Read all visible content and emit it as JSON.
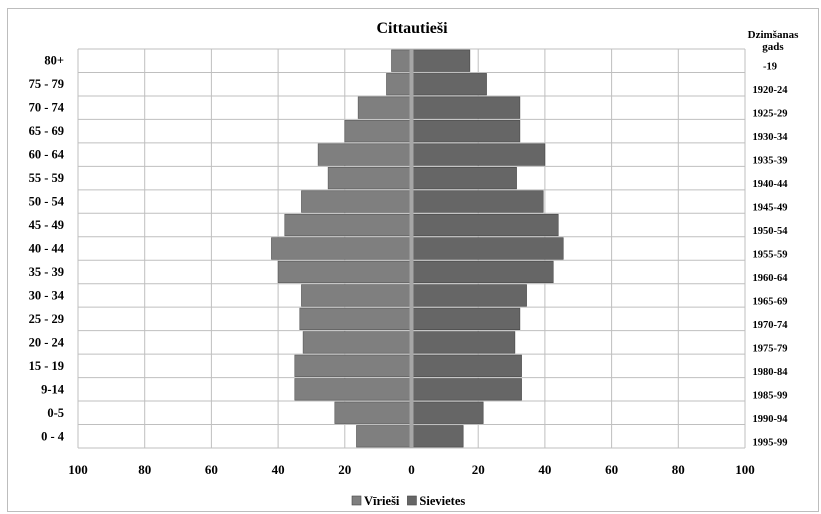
{
  "chart_data": {
    "type": "bar",
    "orientation": "horizontal-population-pyramid",
    "title": "Cittautieši",
    "right_axis_title": "Dzimšanas gads",
    "age_groups": [
      "80+",
      "75 - 79",
      "70 - 74",
      "65 - 69",
      "60 - 64",
      "55 - 59",
      "50 - 54",
      "45 - 49",
      "40 - 44",
      "35 - 39",
      "30 - 34",
      "25 - 29",
      "20 - 24",
      "15 - 19",
      "9-14",
      "0-5",
      "0 - 4"
    ],
    "birth_years": [
      "-19",
      "1920-24",
      "1925-29",
      "1930-34",
      "1935-39",
      "1940-44",
      "1945-49",
      "1950-54",
      "1955-59",
      "1960-64",
      "1965-69",
      "1970-74",
      "1975-79",
      "1980-84",
      "1985-99",
      "1990-94",
      "1995-99"
    ],
    "series": [
      {
        "name": "Vīrieši",
        "values": [
          6,
          7.5,
          16,
          20,
          28,
          25,
          33,
          38,
          42,
          40,
          33,
          33.5,
          32.5,
          35,
          35,
          23,
          16.5
        ]
      },
      {
        "name": "Sievietes",
        "values": [
          17.5,
          22.5,
          32.5,
          32.5,
          40,
          31.5,
          39.5,
          44,
          45.5,
          42.5,
          34.5,
          32.5,
          31,
          33,
          33,
          21.5,
          15.5
        ]
      }
    ],
    "x_ticks": [
      "100",
      "80",
      "60",
      "40",
      "20",
      "0",
      "20",
      "40",
      "60",
      "80",
      "100"
    ],
    "xlim": [
      -100,
      100
    ],
    "grid": true,
    "legend_position": "bottom",
    "colors": {
      "Vīrieši": "#7f7f7f",
      "Sievietes": "#666666",
      "center_line": "#a6a6a6",
      "grid": "#bfbfbf"
    }
  }
}
